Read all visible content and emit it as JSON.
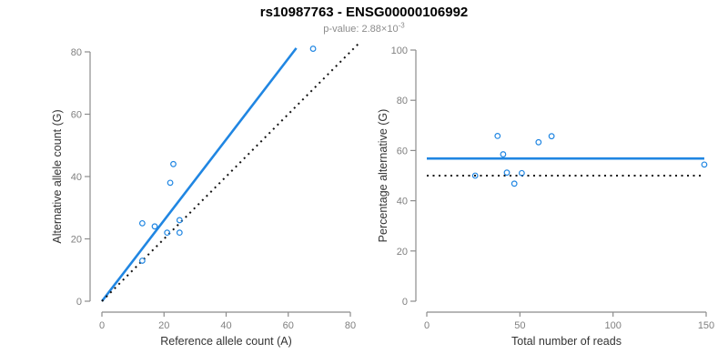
{
  "header": {
    "title": "rs10987763 - ENSG00000106992",
    "subtitle_prefix": "p-value: 2.88×10",
    "subtitle_exponent": "-3"
  },
  "colors": {
    "accent_blue": "#2086E2",
    "dotted_black": "#111111",
    "axis_line": "#8c8c8c",
    "tick_label": "#808080",
    "axis_title": "#333333",
    "subtitle_gray": "#8c8c8c"
  },
  "chart_data": [
    {
      "id": "allele-counts-plot",
      "type": "scatter",
      "xlabel": "Reference allele count (A)",
      "ylabel": "Alternative allele count (G)",
      "xlim": [
        0,
        80
      ],
      "ylim": [
        0,
        80
      ],
      "xticks": [
        0,
        20,
        40,
        60,
        80
      ],
      "yticks": [
        0,
        20,
        40,
        60,
        80
      ],
      "grid": false,
      "points": [
        [
          13,
          13
        ],
        [
          13,
          25
        ],
        [
          17,
          24
        ],
        [
          21,
          22
        ],
        [
          22,
          38
        ],
        [
          23,
          44
        ],
        [
          25,
          22
        ],
        [
          25,
          26
        ],
        [
          68,
          81
        ]
      ],
      "lines": [
        {
          "name": "fit-line",
          "style": "solid",
          "color_key": "accent_blue",
          "x1": 0,
          "y1": 0,
          "x2": 62.6,
          "y2": 81.2
        },
        {
          "name": "identity-line",
          "style": "dotted",
          "color_key": "dotted_black",
          "x1": 0,
          "y1": 0,
          "x2": 83,
          "y2": 83
        }
      ]
    },
    {
      "id": "percentage-vs-reads-plot",
      "type": "scatter",
      "xlabel": "Total number of reads",
      "ylabel": "Percentage alternative (G)",
      "xlim": [
        0,
        150
      ],
      "ylim": [
        0,
        100
      ],
      "xticks": [
        0,
        50,
        100,
        150
      ],
      "yticks": [
        0,
        20,
        40,
        60,
        80,
        100
      ],
      "grid": false,
      "points": [
        [
          26,
          50
        ],
        [
          38,
          65.8
        ],
        [
          41,
          58.5
        ],
        [
          43,
          51.2
        ],
        [
          47,
          46.8
        ],
        [
          51,
          51.0
        ],
        [
          60,
          63.3
        ],
        [
          67,
          65.7
        ],
        [
          149,
          54.4
        ]
      ],
      "lines": [
        {
          "name": "mean-percentage-line",
          "style": "solid",
          "color_key": "accent_blue",
          "x1": 0,
          "y1": 56.8,
          "x2": 149,
          "y2": 56.8
        },
        {
          "name": "expected-50pct-line",
          "style": "dotted",
          "color_key": "dotted_black",
          "x1": 0,
          "y1": 50,
          "x2": 149,
          "y2": 50
        }
      ]
    }
  ]
}
